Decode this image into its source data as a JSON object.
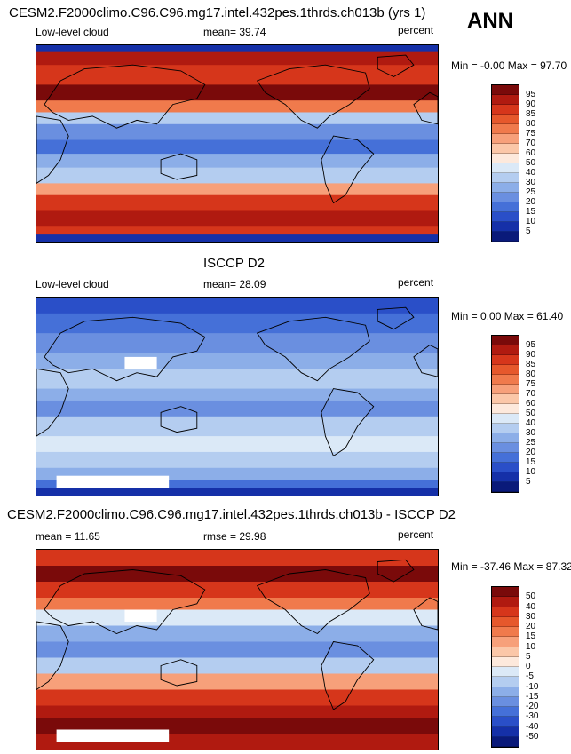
{
  "panels": [
    {
      "id": "model",
      "title": "CESM2.F2000climo.C96.C96.mg17.intel.432pes.1thrds.ch013b (yrs 1)",
      "left_label": "Low-level cloud",
      "stat_label": "mean=",
      "stat_value": "39.74",
      "units": "percent",
      "min_label": "Min =",
      "min_value": "-0.00",
      "max_label": "Max =",
      "max_value": "97.70",
      "colorbar": {
        "labels": [
          "95",
          "90",
          "85",
          "80",
          "75",
          "70",
          "60",
          "50",
          "40",
          "30",
          "25",
          "20",
          "15",
          "10",
          "5"
        ],
        "colors": [
          "#7a0a0a",
          "#b01a10",
          "#d6361b",
          "#e6582c",
          "#f07a4c",
          "#f7a07a",
          "#fbc7a8",
          "#fde9dc",
          "#dbe9f7",
          "#b4cdf0",
          "#8caee8",
          "#6a8fe0",
          "#4570d8",
          "#2a4fc8",
          "#1530a8",
          "#0a1a7a"
        ],
        "lower_colors_from_top": true
      },
      "mean_value": 39.74,
      "style": "model"
    },
    {
      "id": "obs",
      "title": "ISCCP D2",
      "left_label": "Low-level cloud",
      "stat_label": "mean=",
      "stat_value": "28.09",
      "units": "percent",
      "min_label": "Min =",
      "min_value": "0.00",
      "max_label": "Max =",
      "max_value": "61.40",
      "colorbar": {
        "labels": [
          "95",
          "90",
          "85",
          "80",
          "75",
          "70",
          "60",
          "50",
          "40",
          "30",
          "25",
          "20",
          "15",
          "10",
          "5"
        ],
        "colors": [
          "#7a0a0a",
          "#b01a10",
          "#d6361b",
          "#e6582c",
          "#f07a4c",
          "#f7a07a",
          "#fbc7a8",
          "#fde9dc",
          "#dbe9f7",
          "#b4cdf0",
          "#8caee8",
          "#6a8fe0",
          "#4570d8",
          "#2a4fc8",
          "#1530a8",
          "#0a1a7a"
        ]
      },
      "mean_value": 28.09,
      "style": "obs"
    },
    {
      "id": "diff",
      "title": "CESM2.F2000climo.C96.C96.mg17.intel.432pes.1thrds.ch013b - ISCCP D2",
      "left_label": "mean =",
      "left_value": "11.65",
      "stat_label": "rmse =",
      "stat_value": "29.98",
      "units": "percent",
      "min_label": "Min =",
      "min_value": "-37.46",
      "max_label": "Max =",
      "max_value": "87.32",
      "colorbar": {
        "labels": [
          "50",
          "40",
          "30",
          "20",
          "15",
          "10",
          "5",
          "0",
          "-5",
          "-10",
          "-15",
          "-20",
          "-30",
          "-40",
          "-50"
        ],
        "colors": [
          "#7a0a0a",
          "#b01a10",
          "#d6361b",
          "#e6582c",
          "#f07a4c",
          "#f7a07a",
          "#fbc7a8",
          "#fde9dc",
          "#dbe9f7",
          "#b4cdf0",
          "#8caee8",
          "#6a8fe0",
          "#4570d8",
          "#2a4fc8",
          "#1530a8",
          "#0a1a7a"
        ]
      },
      "mean_value": 11.65,
      "style": "diff"
    }
  ],
  "season_label": "ANN",
  "chart_data": [
    {
      "type": "heatmap",
      "title": "CESM2.F2000climo.C96.C96.mg17.intel.432pes.1thrds.ch013b (yrs 1)",
      "variable": "Low-level cloud",
      "units": "percent",
      "mean": 39.74,
      "min": -0.0,
      "max": 97.7,
      "colorbar_levels": [
        5,
        10,
        15,
        20,
        25,
        30,
        40,
        50,
        60,
        70,
        75,
        80,
        85,
        90,
        95
      ]
    },
    {
      "type": "heatmap",
      "title": "ISCCP D2",
      "variable": "Low-level cloud",
      "units": "percent",
      "mean": 28.09,
      "min": 0.0,
      "max": 61.4,
      "colorbar_levels": [
        5,
        10,
        15,
        20,
        25,
        30,
        40,
        50,
        60,
        70,
        75,
        80,
        85,
        90,
        95
      ]
    },
    {
      "type": "heatmap",
      "title": "CESM2.F2000climo.C96.C96.mg17.intel.432pes.1thrds.ch013b - ISCCP D2",
      "units": "percent",
      "mean": 11.65,
      "rmse": 29.98,
      "min": -37.46,
      "max": 87.32,
      "colorbar_levels": [
        -50,
        -40,
        -30,
        -20,
        -15,
        -10,
        -5,
        0,
        5,
        10,
        15,
        20,
        30,
        40,
        50
      ]
    }
  ]
}
